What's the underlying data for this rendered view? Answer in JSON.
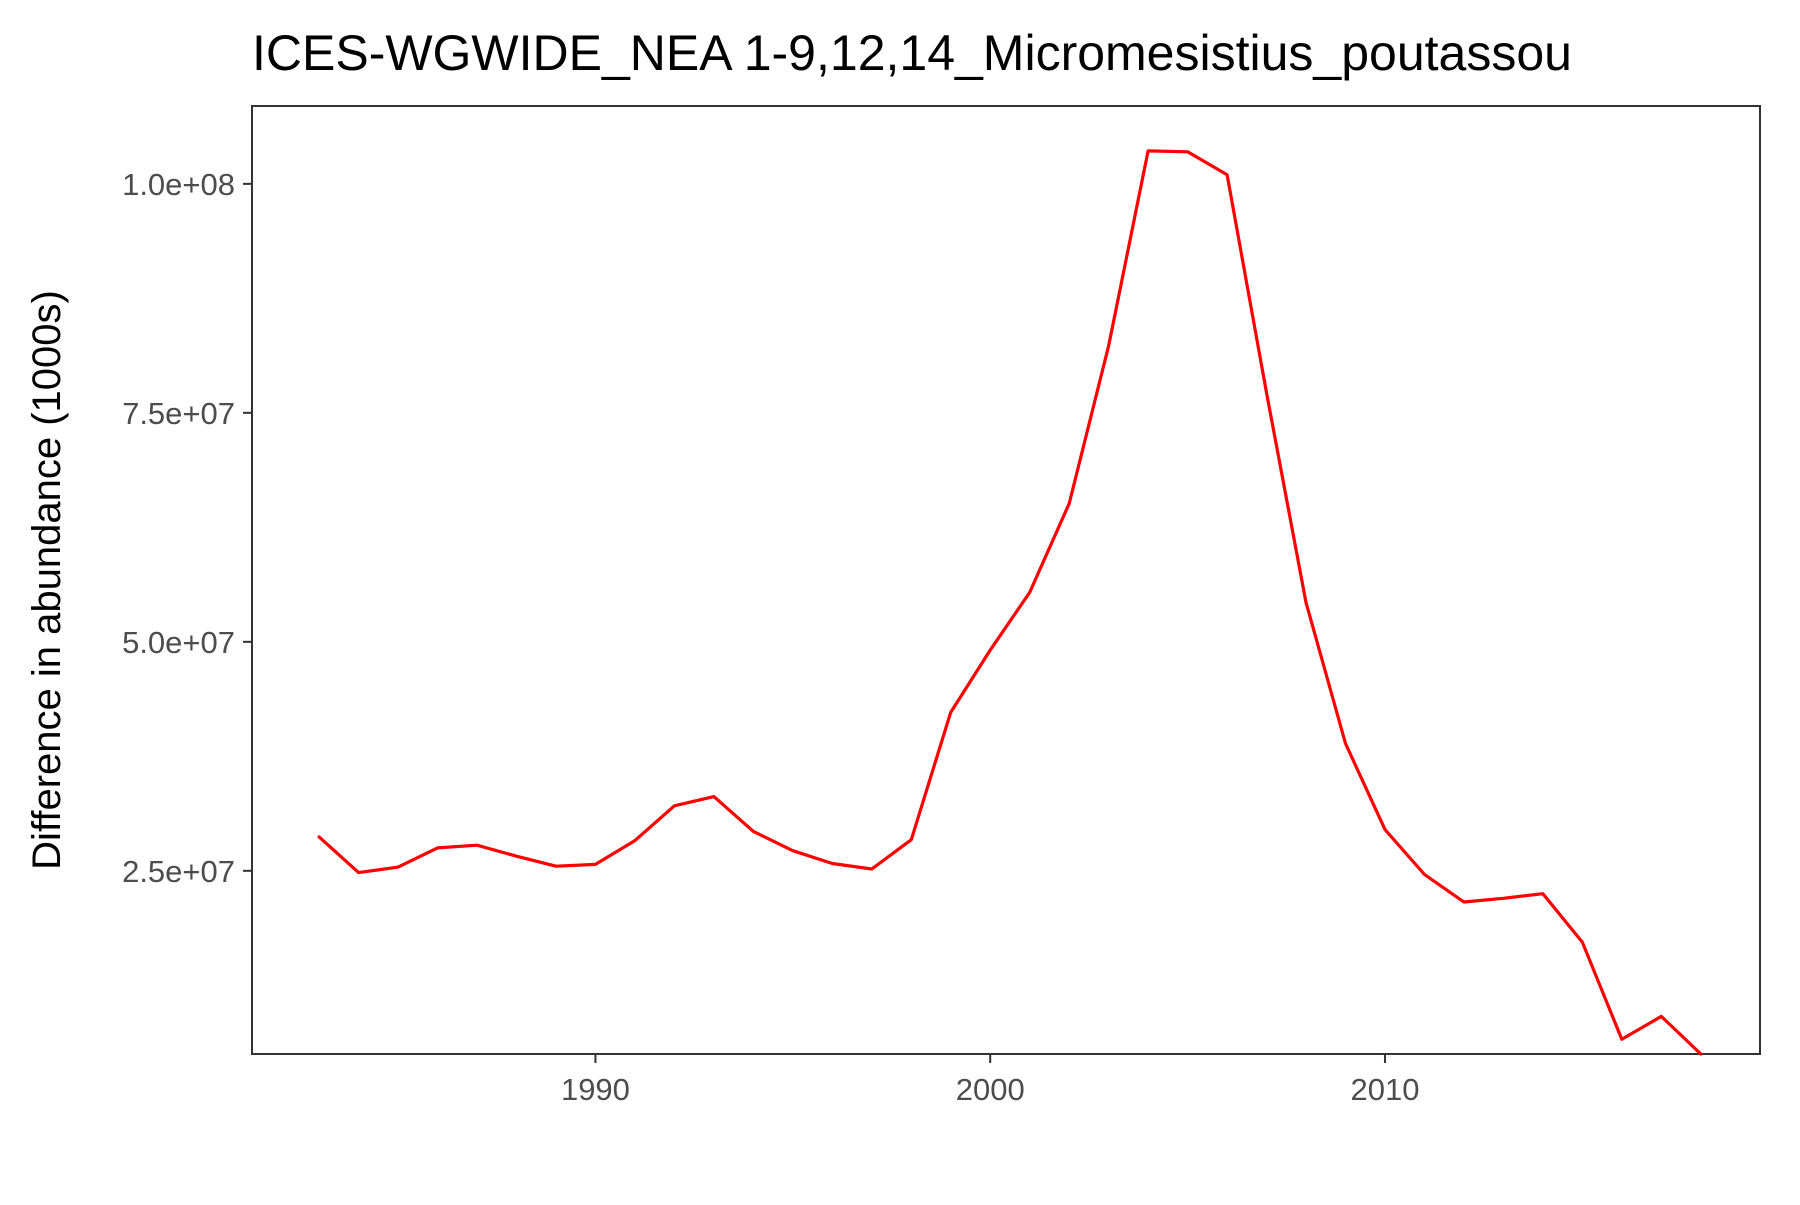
{
  "chart_data": {
    "type": "line",
    "title": "ICES-WGWIDE_NEA 1-9,12,14_Micromesistius_poutassou",
    "xlabel": "",
    "ylabel": "Difference in abundance (1000s)",
    "xlim": [
      1981.3,
      2019.5
    ],
    "ylim": [
      5000000,
      108500000
    ],
    "x_ticks": [
      1990,
      2000,
      2010
    ],
    "x_tick_labels": [
      "1990",
      "2000",
      "2010"
    ],
    "y_ticks": [
      25000000,
      50000000,
      75000000,
      100000000
    ],
    "y_tick_labels": [
      "2.5e+07",
      "5.0e+07",
      "7.5e+07",
      "1.0e+08"
    ],
    "grid": false,
    "legend": "none",
    "series": [
      {
        "color": "#ff0000",
        "x": [
          1983,
          1984,
          1985,
          1986,
          1987,
          1988,
          1989,
          1990,
          1991,
          1992,
          1993,
          1994,
          1995,
          1996,
          1997,
          1998,
          1999,
          2000,
          2001,
          2002,
          2003,
          2004,
          2005,
          2006,
          2007,
          2008,
          2009,
          2010,
          2011,
          2012,
          2013,
          2014,
          2015,
          2016,
          2017,
          2018
        ],
        "values": [
          28700000,
          24800000,
          25400000,
          27500000,
          27800000,
          26600000,
          25500000,
          25700000,
          28300000,
          32100000,
          33100000,
          29300000,
          27200000,
          25800000,
          25200000,
          28400000,
          42300000,
          49100000,
          55400000,
          65100000,
          82300000,
          103600000,
          103500000,
          101000000,
          77200000,
          54300000,
          38900000,
          29500000,
          24600000,
          21600000,
          22000000,
          22500000,
          17200000,
          6600000,
          9100000,
          5000000
        ]
      }
    ]
  }
}
